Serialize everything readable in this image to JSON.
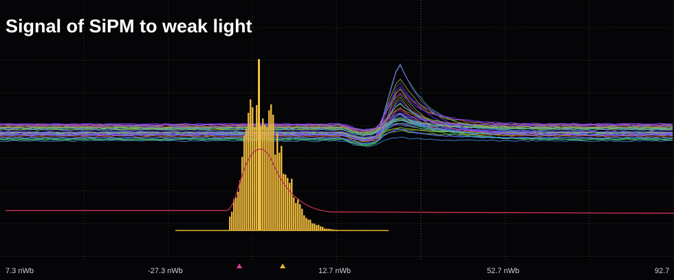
{
  "title": "Signal of SiPM to weak light",
  "axis_labels": [
    "7.3 nWb",
    "-27.3 nWb",
    "12.7 nWb",
    "52.7 nWb",
    "92.7"
  ]
}
